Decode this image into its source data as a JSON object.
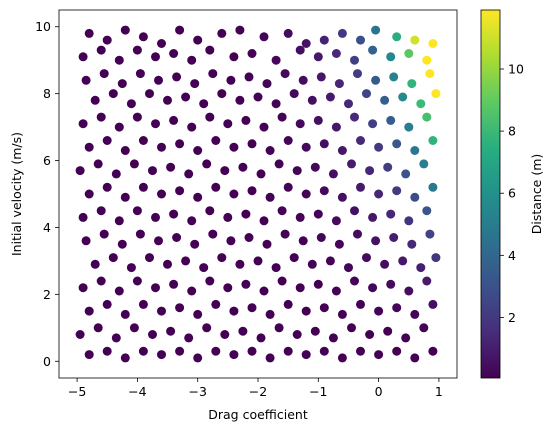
{
  "chart_data": {
    "type": "scatter",
    "title": "",
    "xlabel": "Drag coefficient",
    "ylabel": "Initial velocity (m/s)",
    "xlim": [
      -5.3,
      1.3
    ],
    "ylim": [
      -0.5,
      10.5
    ],
    "xticks": [
      -5,
      -4,
      -3,
      -2,
      -1,
      0,
      1
    ],
    "xtick_labels": [
      "−5",
      "−4",
      "−3",
      "−2",
      "−1",
      "0",
      "1"
    ],
    "yticks": [
      0,
      2,
      4,
      6,
      8,
      10
    ],
    "ytick_labels": [
      "0",
      "2",
      "4",
      "6",
      "8",
      "10"
    ],
    "grid": false,
    "colorbar": {
      "label": "Distance (m)",
      "colormap": "viridis",
      "range": [
        0.05,
        11.9
      ],
      "ticks": [
        2,
        4,
        6,
        8,
        10
      ],
      "tick_labels": [
        "2",
        "4",
        "6",
        "8",
        "10"
      ]
    },
    "marker_color_rule": "color = Distance (m); approx. v*v*exp(2*c)/(9.81*(1+exp(c))) for each (c, v)",
    "points": [
      [
        -4.8,
        9.8
      ],
      [
        -4.5,
        9.6
      ],
      [
        -4.2,
        9.9
      ],
      [
        -3.9,
        9.7
      ],
      [
        -3.6,
        9.5
      ],
      [
        -3.3,
        9.9
      ],
      [
        -3.0,
        9.6
      ],
      [
        -2.6,
        9.8
      ],
      [
        -2.3,
        9.9
      ],
      [
        -1.9,
        9.7
      ],
      [
        -1.5,
        9.8
      ],
      [
        -1.2,
        9.5
      ],
      [
        -0.9,
        9.6
      ],
      [
        -0.6,
        9.8
      ],
      [
        -0.3,
        9.6
      ],
      [
        -0.05,
        9.9
      ],
      [
        0.3,
        9.7
      ],
      [
        0.6,
        9.6
      ],
      [
        0.9,
        9.5
      ],
      [
        -4.9,
        9.1
      ],
      [
        -4.6,
        9.3
      ],
      [
        -4.3,
        9.0
      ],
      [
        -4.0,
        9.3
      ],
      [
        -3.7,
        9.1
      ],
      [
        -3.4,
        9.2
      ],
      [
        -3.1,
        9.0
      ],
      [
        -2.8,
        9.3
      ],
      [
        -2.4,
        9.1
      ],
      [
        -2.1,
        9.2
      ],
      [
        -1.7,
        9.0
      ],
      [
        -1.3,
        9.3
      ],
      [
        -1.0,
        9.1
      ],
      [
        -0.7,
        9.2
      ],
      [
        -0.4,
        9.0
      ],
      [
        -0.1,
        9.3
      ],
      [
        0.2,
        9.1
      ],
      [
        0.5,
        9.2
      ],
      [
        0.8,
        9.0
      ],
      [
        -4.85,
        8.4
      ],
      [
        -4.55,
        8.6
      ],
      [
        -4.25,
        8.3
      ],
      [
        -3.95,
        8.6
      ],
      [
        -3.65,
        8.4
      ],
      [
        -3.35,
        8.5
      ],
      [
        -3.05,
        8.3
      ],
      [
        -2.75,
        8.6
      ],
      [
        -2.45,
        8.4
      ],
      [
        -2.15,
        8.5
      ],
      [
        -1.85,
        8.3
      ],
      [
        -1.55,
        8.6
      ],
      [
        -1.25,
        8.4
      ],
      [
        -0.95,
        8.5
      ],
      [
        -0.65,
        8.3
      ],
      [
        -0.35,
        8.6
      ],
      [
        -0.05,
        8.4
      ],
      [
        0.25,
        8.5
      ],
      [
        0.55,
        8.3
      ],
      [
        0.85,
        8.6
      ],
      [
        -4.7,
        7.8
      ],
      [
        -4.4,
        8.0
      ],
      [
        -4.1,
        7.7
      ],
      [
        -3.8,
        8.0
      ],
      [
        -3.5,
        7.8
      ],
      [
        -3.2,
        7.9
      ],
      [
        -2.9,
        7.7
      ],
      [
        -2.6,
        8.0
      ],
      [
        -2.3,
        7.8
      ],
      [
        -2.0,
        7.9
      ],
      [
        -1.7,
        7.7
      ],
      [
        -1.4,
        8.0
      ],
      [
        -1.1,
        7.8
      ],
      [
        -0.8,
        7.9
      ],
      [
        -0.5,
        7.7
      ],
      [
        -0.2,
        8.0
      ],
      [
        0.1,
        7.8
      ],
      [
        0.4,
        7.9
      ],
      [
        0.7,
        7.7
      ],
      [
        0.95,
        8.0
      ],
      [
        -4.9,
        7.1
      ],
      [
        -4.6,
        7.3
      ],
      [
        -4.3,
        7.0
      ],
      [
        -4.0,
        7.3
      ],
      [
        -3.7,
        7.1
      ],
      [
        -3.4,
        7.2
      ],
      [
        -3.1,
        7.0
      ],
      [
        -2.8,
        7.3
      ],
      [
        -2.5,
        7.1
      ],
      [
        -2.2,
        7.2
      ],
      [
        -1.9,
        7.0
      ],
      [
        -1.6,
        7.3
      ],
      [
        -1.3,
        7.1
      ],
      [
        -1.0,
        7.2
      ],
      [
        -0.7,
        7.0
      ],
      [
        -0.4,
        7.3
      ],
      [
        -0.1,
        7.1
      ],
      [
        0.2,
        7.2
      ],
      [
        0.5,
        7.0
      ],
      [
        0.8,
        7.3
      ],
      [
        -4.8,
        6.4
      ],
      [
        -4.5,
        6.6
      ],
      [
        -4.2,
        6.3
      ],
      [
        -3.9,
        6.6
      ],
      [
        -3.6,
        6.4
      ],
      [
        -3.3,
        6.5
      ],
      [
        -3.0,
        6.3
      ],
      [
        -2.7,
        6.6
      ],
      [
        -2.4,
        6.4
      ],
      [
        -2.1,
        6.5
      ],
      [
        -1.8,
        6.3
      ],
      [
        -1.5,
        6.6
      ],
      [
        -1.2,
        6.4
      ],
      [
        -0.9,
        6.5
      ],
      [
        -0.6,
        6.3
      ],
      [
        -0.3,
        6.6
      ],
      [
        0.0,
        6.4
      ],
      [
        0.3,
        6.5
      ],
      [
        0.6,
        6.3
      ],
      [
        0.9,
        6.6
      ],
      [
        -4.95,
        5.7
      ],
      [
        -4.65,
        5.9
      ],
      [
        -4.35,
        5.6
      ],
      [
        -4.05,
        5.9
      ],
      [
        -3.75,
        5.7
      ],
      [
        -3.45,
        5.8
      ],
      [
        -3.15,
        5.6
      ],
      [
        -2.85,
        5.9
      ],
      [
        -2.55,
        5.7
      ],
      [
        -2.25,
        5.8
      ],
      [
        -1.95,
        5.6
      ],
      [
        -1.65,
        5.9
      ],
      [
        -1.35,
        5.7
      ],
      [
        -1.05,
        5.8
      ],
      [
        -0.75,
        5.6
      ],
      [
        -0.45,
        5.9
      ],
      [
        -0.15,
        5.7
      ],
      [
        0.15,
        5.8
      ],
      [
        0.45,
        5.6
      ],
      [
        0.75,
        5.9
      ],
      [
        -4.8,
        5.0
      ],
      [
        -4.5,
        5.2
      ],
      [
        -4.2,
        4.9
      ],
      [
        -3.9,
        5.2
      ],
      [
        -3.6,
        5.0
      ],
      [
        -3.3,
        5.1
      ],
      [
        -3.0,
        4.9
      ],
      [
        -2.7,
        5.2
      ],
      [
        -2.4,
        5.0
      ],
      [
        -2.1,
        5.1
      ],
      [
        -1.8,
        4.9
      ],
      [
        -1.5,
        5.2
      ],
      [
        -1.2,
        5.0
      ],
      [
        -0.9,
        5.1
      ],
      [
        -0.6,
        4.9
      ],
      [
        -0.3,
        5.2
      ],
      [
        0.0,
        5.0
      ],
      [
        0.3,
        5.1
      ],
      [
        0.6,
        4.9
      ],
      [
        0.9,
        5.2
      ],
      [
        -4.9,
        4.3
      ],
      [
        -4.6,
        4.5
      ],
      [
        -4.3,
        4.2
      ],
      [
        -4.0,
        4.5
      ],
      [
        -3.7,
        4.3
      ],
      [
        -3.4,
        4.4
      ],
      [
        -3.1,
        4.2
      ],
      [
        -2.8,
        4.5
      ],
      [
        -2.5,
        4.3
      ],
      [
        -2.2,
        4.4
      ],
      [
        -1.9,
        4.2
      ],
      [
        -1.6,
        4.5
      ],
      [
        -1.3,
        4.3
      ],
      [
        -1.0,
        4.4
      ],
      [
        -0.7,
        4.2
      ],
      [
        -0.4,
        4.5
      ],
      [
        -0.1,
        4.3
      ],
      [
        0.2,
        4.4
      ],
      [
        0.5,
        4.2
      ],
      [
        0.8,
        4.5
      ],
      [
        -4.85,
        3.6
      ],
      [
        -4.55,
        3.8
      ],
      [
        -4.25,
        3.5
      ],
      [
        -3.95,
        3.8
      ],
      [
        -3.65,
        3.6
      ],
      [
        -3.35,
        3.7
      ],
      [
        -3.05,
        3.5
      ],
      [
        -2.75,
        3.8
      ],
      [
        -2.45,
        3.6
      ],
      [
        -2.15,
        3.7
      ],
      [
        -1.85,
        3.5
      ],
      [
        -1.55,
        3.8
      ],
      [
        -1.25,
        3.6
      ],
      [
        -0.95,
        3.7
      ],
      [
        -0.65,
        3.5
      ],
      [
        -0.35,
        3.8
      ],
      [
        -0.05,
        3.6
      ],
      [
        0.25,
        3.7
      ],
      [
        0.55,
        3.5
      ],
      [
        0.85,
        3.8
      ],
      [
        -4.7,
        2.9
      ],
      [
        -4.4,
        3.1
      ],
      [
        -4.1,
        2.8
      ],
      [
        -3.8,
        3.1
      ],
      [
        -3.5,
        2.9
      ],
      [
        -3.2,
        3.0
      ],
      [
        -2.9,
        2.8
      ],
      [
        -2.6,
        3.1
      ],
      [
        -2.3,
        2.9
      ],
      [
        -2.0,
        3.0
      ],
      [
        -1.7,
        2.8
      ],
      [
        -1.4,
        3.1
      ],
      [
        -1.1,
        2.9
      ],
      [
        -0.8,
        3.0
      ],
      [
        -0.5,
        2.8
      ],
      [
        -0.2,
        3.1
      ],
      [
        0.1,
        2.9
      ],
      [
        0.4,
        3.0
      ],
      [
        0.7,
        2.8
      ],
      [
        0.95,
        3.1
      ],
      [
        -4.9,
        2.2
      ],
      [
        -4.6,
        2.4
      ],
      [
        -4.3,
        2.1
      ],
      [
        -4.0,
        2.4
      ],
      [
        -3.7,
        2.2
      ],
      [
        -3.4,
        2.3
      ],
      [
        -3.1,
        2.1
      ],
      [
        -2.8,
        2.4
      ],
      [
        -2.5,
        2.2
      ],
      [
        -2.2,
        2.3
      ],
      [
        -1.9,
        2.1
      ],
      [
        -1.6,
        2.4
      ],
      [
        -1.3,
        2.2
      ],
      [
        -1.0,
        2.3
      ],
      [
        -0.7,
        2.1
      ],
      [
        -0.4,
        2.4
      ],
      [
        -0.1,
        2.2
      ],
      [
        0.2,
        2.3
      ],
      [
        0.5,
        2.1
      ],
      [
        0.8,
        2.4
      ],
      [
        -4.8,
        1.5
      ],
      [
        -4.5,
        1.7
      ],
      [
        -4.2,
        1.4
      ],
      [
        -3.9,
        1.7
      ],
      [
        -3.6,
        1.5
      ],
      [
        -3.3,
        1.6
      ],
      [
        -3.0,
        1.4
      ],
      [
        -2.7,
        1.7
      ],
      [
        -2.4,
        1.5
      ],
      [
        -2.1,
        1.6
      ],
      [
        -1.8,
        1.4
      ],
      [
        -1.5,
        1.7
      ],
      [
        -1.2,
        1.5
      ],
      [
        -0.9,
        1.6
      ],
      [
        -0.6,
        1.4
      ],
      [
        -0.3,
        1.7
      ],
      [
        0.0,
        1.5
      ],
      [
        0.3,
        1.6
      ],
      [
        0.6,
        1.4
      ],
      [
        0.9,
        1.7
      ],
      [
        -4.95,
        0.8
      ],
      [
        -4.65,
        1.0
      ],
      [
        -4.35,
        0.7
      ],
      [
        -4.05,
        1.0
      ],
      [
        -3.75,
        0.8
      ],
      [
        -3.45,
        0.9
      ],
      [
        -3.15,
        0.7
      ],
      [
        -2.85,
        1.0
      ],
      [
        -2.55,
        0.8
      ],
      [
        -2.25,
        0.9
      ],
      [
        -1.95,
        0.7
      ],
      [
        -1.65,
        1.0
      ],
      [
        -1.35,
        0.8
      ],
      [
        -1.05,
        0.9
      ],
      [
        -0.75,
        0.7
      ],
      [
        -0.45,
        1.0
      ],
      [
        -0.15,
        0.8
      ],
      [
        0.15,
        0.9
      ],
      [
        0.45,
        0.7
      ],
      [
        0.75,
        1.0
      ],
      [
        -4.8,
        0.2
      ],
      [
        -4.5,
        0.3
      ],
      [
        -4.2,
        0.1
      ],
      [
        -3.9,
        0.3
      ],
      [
        -3.6,
        0.2
      ],
      [
        -3.3,
        0.3
      ],
      [
        -3.0,
        0.1
      ],
      [
        -2.7,
        0.3
      ],
      [
        -2.4,
        0.2
      ],
      [
        -2.1,
        0.3
      ],
      [
        -1.8,
        0.1
      ],
      [
        -1.5,
        0.3
      ],
      [
        -1.2,
        0.2
      ],
      [
        -0.9,
        0.3
      ],
      [
        -0.6,
        0.1
      ],
      [
        -0.3,
        0.3
      ],
      [
        0.0,
        0.2
      ],
      [
        0.3,
        0.3
      ],
      [
        0.6,
        0.1
      ],
      [
        0.9,
        0.3
      ]
    ]
  }
}
